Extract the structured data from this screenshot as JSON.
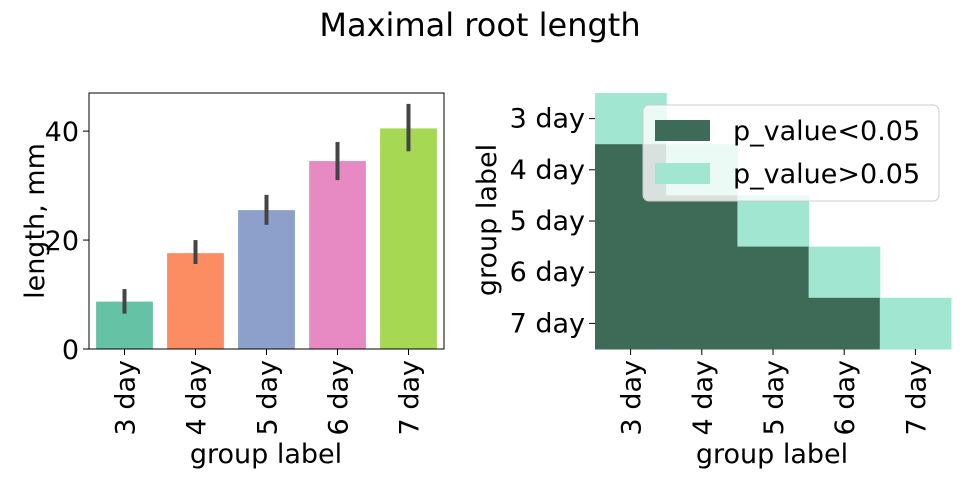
{
  "title": "Maximal root length",
  "chart_data": [
    {
      "type": "bar",
      "categories": [
        "3 day",
        "4 day",
        "5 day",
        "6 day",
        "7 day"
      ],
      "values": [
        8.7,
        17.6,
        25.5,
        34.5,
        40.5
      ],
      "error_low": [
        6.5,
        15.6,
        22.8,
        31.0,
        36.3
      ],
      "error_high": [
        11.0,
        20.0,
        28.3,
        38.0,
        45.0
      ],
      "colors": [
        "#66c2a5",
        "#fc8d62",
        "#8da0cb",
        "#e78ac3",
        "#a6d854"
      ],
      "ylim": [
        0,
        47
      ],
      "yticks": [
        0,
        20,
        40
      ],
      "xlabel": "group label",
      "ylabel": "length, mm"
    },
    {
      "type": "heatmap",
      "rows": [
        "3 day",
        "4 day",
        "5 day",
        "6 day",
        "7 day"
      ],
      "columns": [
        "3 day",
        "4 day",
        "5 day",
        "6 day",
        "7 day"
      ],
      "cells": [
        [
          "p_value>0.05",
          null,
          null,
          null,
          null
        ],
        [
          "p_value<0.05",
          "p_value>0.05",
          null,
          null,
          null
        ],
        [
          "p_value<0.05",
          "p_value<0.05",
          "p_value>0.05",
          null,
          null
        ],
        [
          "p_value<0.05",
          "p_value<0.05",
          "p_value<0.05",
          "p_value>0.05",
          null
        ],
        [
          "p_value<0.05",
          "p_value<0.05",
          "p_value<0.05",
          "p_value<0.05",
          "p_value>0.05"
        ]
      ],
      "legend": [
        {
          "label": "p_value<0.05",
          "color": "#3d6b58"
        },
        {
          "label": "p_value>0.05",
          "color": "#a0e6d0"
        }
      ],
      "legend_position": "upper-right",
      "xlabel": "group label",
      "ylabel": "group label"
    }
  ]
}
